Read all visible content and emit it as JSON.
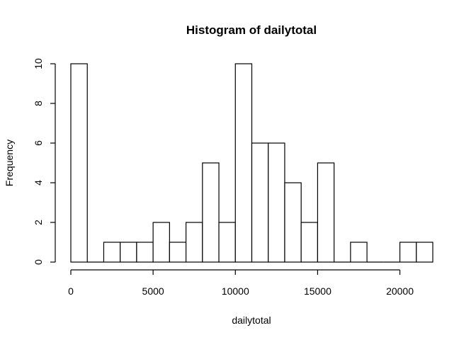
{
  "chart_data": {
    "type": "bar",
    "subtype": "histogram",
    "title": "Histogram of dailytotal",
    "xlabel": "dailytotal",
    "ylabel": "Frequency",
    "bin_width": 1000,
    "bins": [
      {
        "start": 0,
        "end": 1000,
        "count": 10
      },
      {
        "start": 1000,
        "end": 2000,
        "count": 0
      },
      {
        "start": 2000,
        "end": 3000,
        "count": 1
      },
      {
        "start": 3000,
        "end": 4000,
        "count": 1
      },
      {
        "start": 4000,
        "end": 5000,
        "count": 1
      },
      {
        "start": 5000,
        "end": 6000,
        "count": 2
      },
      {
        "start": 6000,
        "end": 7000,
        "count": 1
      },
      {
        "start": 7000,
        "end": 8000,
        "count": 2
      },
      {
        "start": 8000,
        "end": 9000,
        "count": 5
      },
      {
        "start": 9000,
        "end": 10000,
        "count": 2
      },
      {
        "start": 10000,
        "end": 11000,
        "count": 10
      },
      {
        "start": 11000,
        "end": 12000,
        "count": 6
      },
      {
        "start": 12000,
        "end": 13000,
        "count": 6
      },
      {
        "start": 13000,
        "end": 14000,
        "count": 4
      },
      {
        "start": 14000,
        "end": 15000,
        "count": 2
      },
      {
        "start": 15000,
        "end": 16000,
        "count": 5
      },
      {
        "start": 16000,
        "end": 17000,
        "count": 0
      },
      {
        "start": 17000,
        "end": 18000,
        "count": 1
      },
      {
        "start": 18000,
        "end": 19000,
        "count": 0
      },
      {
        "start": 19000,
        "end": 20000,
        "count": 0
      },
      {
        "start": 20000,
        "end": 21000,
        "count": 1
      },
      {
        "start": 21000,
        "end": 22000,
        "count": 1
      }
    ],
    "xlim": [
      0,
      22000
    ],
    "ylim": [
      0,
      10
    ],
    "x_ticks": [
      0,
      5000,
      10000,
      15000,
      20000
    ],
    "x_tick_labels": [
      "0",
      "5000",
      "10000",
      "15000",
      "20000"
    ],
    "y_ticks": [
      0,
      2,
      4,
      6,
      8,
      10
    ],
    "y_tick_labels": [
      "0",
      "2",
      "4",
      "6",
      "8",
      "10"
    ],
    "grid": false,
    "legend": "none"
  }
}
